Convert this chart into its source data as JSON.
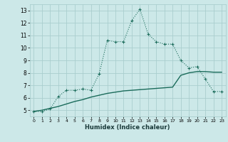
{
  "xlabel": "Humidex (Indice chaleur)",
  "bg_color": "#cce8e8",
  "grid_color": "#aacece",
  "line_color": "#1a6b5a",
  "xlim": [
    -0.5,
    23.5
  ],
  "ylim": [
    4.5,
    13.5
  ],
  "xticks": [
    0,
    1,
    2,
    3,
    4,
    5,
    6,
    7,
    8,
    9,
    10,
    11,
    12,
    13,
    14,
    15,
    16,
    17,
    18,
    19,
    20,
    21,
    22,
    23
  ],
  "yticks": [
    5,
    6,
    7,
    8,
    9,
    10,
    11,
    12,
    13
  ],
  "curve_x": [
    0,
    1,
    2,
    3,
    4,
    5,
    6,
    7,
    8,
    9,
    10,
    11,
    12,
    13,
    14,
    15,
    16,
    17,
    18,
    19,
    20,
    21,
    22,
    23
  ],
  "curve_y": [
    4.9,
    4.9,
    5.1,
    6.1,
    6.6,
    6.6,
    6.7,
    6.6,
    7.9,
    10.6,
    10.5,
    10.5,
    12.2,
    13.1,
    11.1,
    10.5,
    10.3,
    10.3,
    9.0,
    8.4,
    8.5,
    7.5,
    6.5,
    6.5
  ],
  "linear_x": [
    0,
    1,
    2,
    3,
    4,
    5,
    6,
    7,
    8,
    9,
    10,
    11,
    12,
    13,
    14,
    15,
    16,
    17,
    18,
    19,
    20,
    21,
    22,
    23
  ],
  "linear_y": [
    4.9,
    5.0,
    5.15,
    5.3,
    5.5,
    5.7,
    5.85,
    6.05,
    6.2,
    6.35,
    6.45,
    6.55,
    6.6,
    6.65,
    6.7,
    6.75,
    6.8,
    6.85,
    7.8,
    8.0,
    8.1,
    8.1,
    8.05,
    8.05
  ]
}
